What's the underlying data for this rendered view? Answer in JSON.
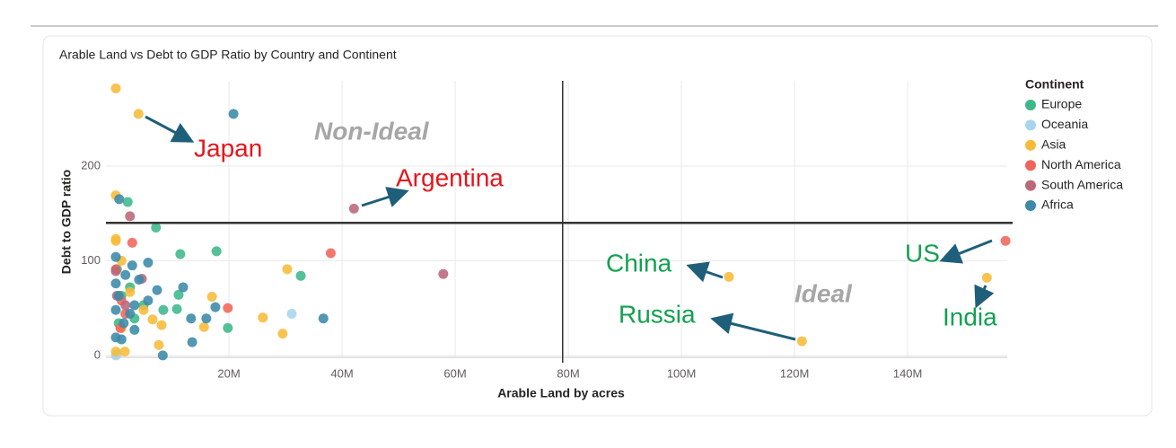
{
  "chart_data": {
    "type": "scatter",
    "title": "Arable Land vs Debt to GDP Ratio by Country and Continent",
    "x_label": "Arable Land by acres",
    "y_label": "Debt to GDP ratio",
    "legend_title": "Continent",
    "legend_position": "right",
    "grid": true,
    "xlim": [
      -1750000,
      157600000
    ],
    "ylim": [
      -2,
      290
    ],
    "xticks": [
      {
        "value": 20000000,
        "label": "20M"
      },
      {
        "value": 40000000,
        "label": "40M"
      },
      {
        "value": 60000000,
        "label": "60M"
      },
      {
        "value": 80000000,
        "label": "80M"
      },
      {
        "value": 100000000,
        "label": "100M"
      },
      {
        "value": 120000000,
        "label": "120M"
      },
      {
        "value": 140000000,
        "label": "140M"
      }
    ],
    "yticks": [
      0,
      100,
      200
    ],
    "reference_lines": {
      "x": 79000000,
      "y": 140
    },
    "series": [
      {
        "name": "Europe",
        "color": "#3cb88a",
        "x": [
          2100000,
          7100000,
          11400000,
          17800000,
          32700000,
          19800000,
          11100000,
          10800000,
          8400000,
          200000,
          1000000,
          2500000,
          3300000,
          4900000,
          500000
        ],
        "values": [
          162,
          135,
          107,
          110,
          84,
          29,
          64,
          49,
          48,
          91,
          63,
          72,
          39,
          53,
          34
        ]
      },
      {
        "name": "Oceania",
        "color": "#a8d4ef",
        "x": [
          31100000,
          0,
          200000
        ],
        "values": [
          44,
          0,
          1
        ]
      },
      {
        "name": "Asia",
        "color": "#f7bb38",
        "x": [
          0,
          4000000,
          0,
          0,
          0,
          108400000,
          121300000,
          154000000,
          30300000,
          17000000,
          26000000,
          29500000,
          15600000,
          7600000,
          8100000,
          1600000,
          0,
          1000000,
          4900000,
          2500000,
          6500000,
          1000000
        ],
        "values": [
          282,
          255,
          169,
          121,
          123,
          83,
          15,
          82,
          91,
          62,
          40,
          23,
          30,
          11,
          32,
          4,
          4,
          100,
          48,
          67,
          38,
          29
        ]
      },
      {
        "name": "North America",
        "color": "#f2645a",
        "x": [
          157300000,
          38000000,
          2900000,
          19800000,
          800000,
          1000000,
          0,
          1700000
        ],
        "values": [
          121,
          108,
          119,
          50,
          29,
          58,
          91,
          44
        ]
      },
      {
        "name": "South America",
        "color": "#b9687b",
        "x": [
          42100000,
          57900000,
          2500000,
          0,
          4600000,
          200000,
          1700000
        ],
        "values": [
          155,
          86,
          147,
          89,
          81,
          63,
          53
        ]
      },
      {
        "name": "Africa",
        "color": "#3a8aa8",
        "x": [
          20800000,
          600000,
          0,
          5700000,
          2900000,
          11900000,
          17600000,
          13300000,
          16000000,
          13500000,
          8300000,
          36700000,
          7300000,
          4100000,
          1700000,
          0,
          500000,
          3300000,
          5700000,
          1400000,
          0,
          1000000,
          3300000,
          2500000,
          0
        ],
        "values": [
          255,
          165,
          104,
          98,
          95,
          72,
          51,
          39,
          39,
          14,
          0,
          39,
          69,
          80,
          85,
          76,
          63,
          53,
          58,
          34,
          19,
          17,
          27,
          44,
          48
        ]
      }
    ],
    "annotations": [
      {
        "text": "Japan",
        "color": "#e8141b"
      },
      {
        "text": "Argentina",
        "color": "#e8141b"
      },
      {
        "text": "China",
        "color": "#12a150"
      },
      {
        "text": "Russia",
        "color": "#12a150"
      },
      {
        "text": "US",
        "color": "#12a150"
      },
      {
        "text": "India",
        "color": "#12a150"
      },
      {
        "text": "Non-Ideal",
        "color": "#a6a6a6"
      },
      {
        "text": "Ideal",
        "color": "#a6a6a6"
      }
    ]
  }
}
